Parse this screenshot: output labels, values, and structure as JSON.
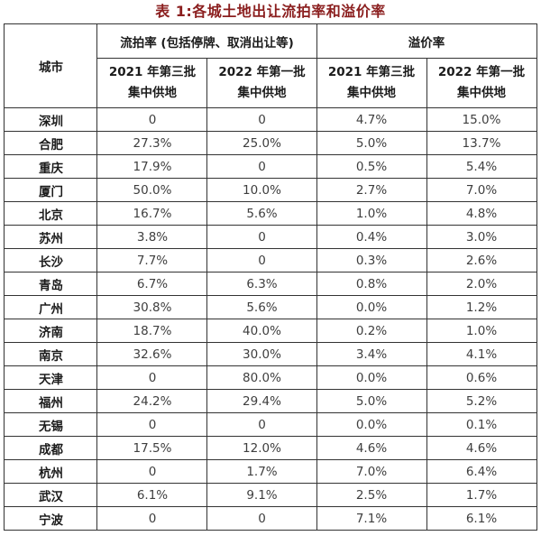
{
  "title": "表 1:各城土地出让流拍率和溢价率",
  "colors": {
    "title_text": "#8B1F1F",
    "border": "#333333",
    "header_text": "#1b1b1b",
    "value_text": "#3e3e3e",
    "background": "#ffffff"
  },
  "table": {
    "columns": {
      "city": "城市",
      "groups": [
        {
          "label": "流拍率 (包括停牌、取消出让等)"
        },
        {
          "label": "溢价率"
        }
      ],
      "subheaders": [
        {
          "line1": "2021 年第三批",
          "line2": "集中供地"
        },
        {
          "line1": "2022 年第一批",
          "line2": "集中供地"
        },
        {
          "line1": "2021 年第三批",
          "line2": "集中供地"
        },
        {
          "line1": "2022 年第一批",
          "line2": "集中供地"
        }
      ]
    },
    "rows": [
      {
        "city": "深圳",
        "values": [
          "0",
          "0",
          "4.7%",
          "15.0%"
        ]
      },
      {
        "city": "合肥",
        "values": [
          "27.3%",
          "25.0%",
          "5.0%",
          "13.7%"
        ]
      },
      {
        "city": "重庆",
        "values": [
          "17.9%",
          "0",
          "0.5%",
          "5.4%"
        ]
      },
      {
        "city": "厦门",
        "values": [
          "50.0%",
          "10.0%",
          "2.7%",
          "7.0%"
        ]
      },
      {
        "city": "北京",
        "values": [
          "16.7%",
          "5.6%",
          "1.0%",
          "4.8%"
        ]
      },
      {
        "city": "苏州",
        "values": [
          "3.8%",
          "0",
          "0.4%",
          "3.0%"
        ]
      },
      {
        "city": "长沙",
        "values": [
          "7.7%",
          "0",
          "0.3%",
          "2.6%"
        ]
      },
      {
        "city": "青岛",
        "values": [
          "6.7%",
          "6.3%",
          "0.8%",
          "2.0%"
        ]
      },
      {
        "city": "广州",
        "values": [
          "30.8%",
          "5.6%",
          "0.0%",
          "1.2%"
        ]
      },
      {
        "city": "济南",
        "values": [
          "18.7%",
          "40.0%",
          "0.2%",
          "1.0%"
        ]
      },
      {
        "city": "南京",
        "values": [
          "32.6%",
          "30.0%",
          "3.4%",
          "4.1%"
        ]
      },
      {
        "city": "天津",
        "values": [
          "0",
          "80.0%",
          "0.0%",
          "0.6%"
        ]
      },
      {
        "city": "福州",
        "values": [
          "24.2%",
          "29.4%",
          "5.0%",
          "5.2%"
        ]
      },
      {
        "city": "无锡",
        "values": [
          "0",
          "0",
          "0.0%",
          "0.1%"
        ]
      },
      {
        "city": "成都",
        "values": [
          "17.5%",
          "12.0%",
          "4.6%",
          "4.6%"
        ]
      },
      {
        "city": "杭州",
        "values": [
          "0",
          "1.7%",
          "7.0%",
          "6.4%"
        ]
      },
      {
        "city": "武汉",
        "values": [
          "6.1%",
          "9.1%",
          "2.5%",
          "1.7%"
        ]
      },
      {
        "city": "宁波",
        "values": [
          "0",
          "0",
          "7.1%",
          "6.1%"
        ]
      }
    ]
  },
  "chart_data": {
    "type": "table",
    "title": "表 1:各城土地出让流拍率和溢价率",
    "column_groups": [
      "城市",
      "流拍率 (包括停牌、取消出让等)",
      "溢价率"
    ],
    "columns": [
      "城市",
      "流拍率 2021 年第三批集中供地",
      "流拍率 2022 年第一批集中供地",
      "溢价率 2021 年第三批集中供地",
      "溢价率 2022 年第一批集中供地"
    ],
    "rows": [
      [
        "深圳",
        "0",
        "0",
        "4.7%",
        "15.0%"
      ],
      [
        "合肥",
        "27.3%",
        "25.0%",
        "5.0%",
        "13.7%"
      ],
      [
        "重庆",
        "17.9%",
        "0",
        "0.5%",
        "5.4%"
      ],
      [
        "厦门",
        "50.0%",
        "10.0%",
        "2.7%",
        "7.0%"
      ],
      [
        "北京",
        "16.7%",
        "5.6%",
        "1.0%",
        "4.8%"
      ],
      [
        "苏州",
        "3.8%",
        "0",
        "0.4%",
        "3.0%"
      ],
      [
        "长沙",
        "7.7%",
        "0",
        "0.3%",
        "2.6%"
      ],
      [
        "青岛",
        "6.7%",
        "6.3%",
        "0.8%",
        "2.0%"
      ],
      [
        "广州",
        "30.8%",
        "5.6%",
        "0.0%",
        "1.2%"
      ],
      [
        "济南",
        "18.7%",
        "40.0%",
        "0.2%",
        "1.0%"
      ],
      [
        "南京",
        "32.6%",
        "30.0%",
        "3.4%",
        "4.1%"
      ],
      [
        "天津",
        "0",
        "80.0%",
        "0.0%",
        "0.6%"
      ],
      [
        "福州",
        "24.2%",
        "29.4%",
        "5.0%",
        "5.2%"
      ],
      [
        "无锡",
        "0",
        "0",
        "0.0%",
        "0.1%"
      ],
      [
        "成都",
        "17.5%",
        "12.0%",
        "4.6%",
        "4.6%"
      ],
      [
        "杭州",
        "0",
        "1.7%",
        "7.0%",
        "6.4%"
      ],
      [
        "武汉",
        "6.1%",
        "9.1%",
        "2.5%",
        "1.7%"
      ],
      [
        "宁波",
        "0",
        "0",
        "7.1%",
        "6.1%"
      ]
    ]
  }
}
